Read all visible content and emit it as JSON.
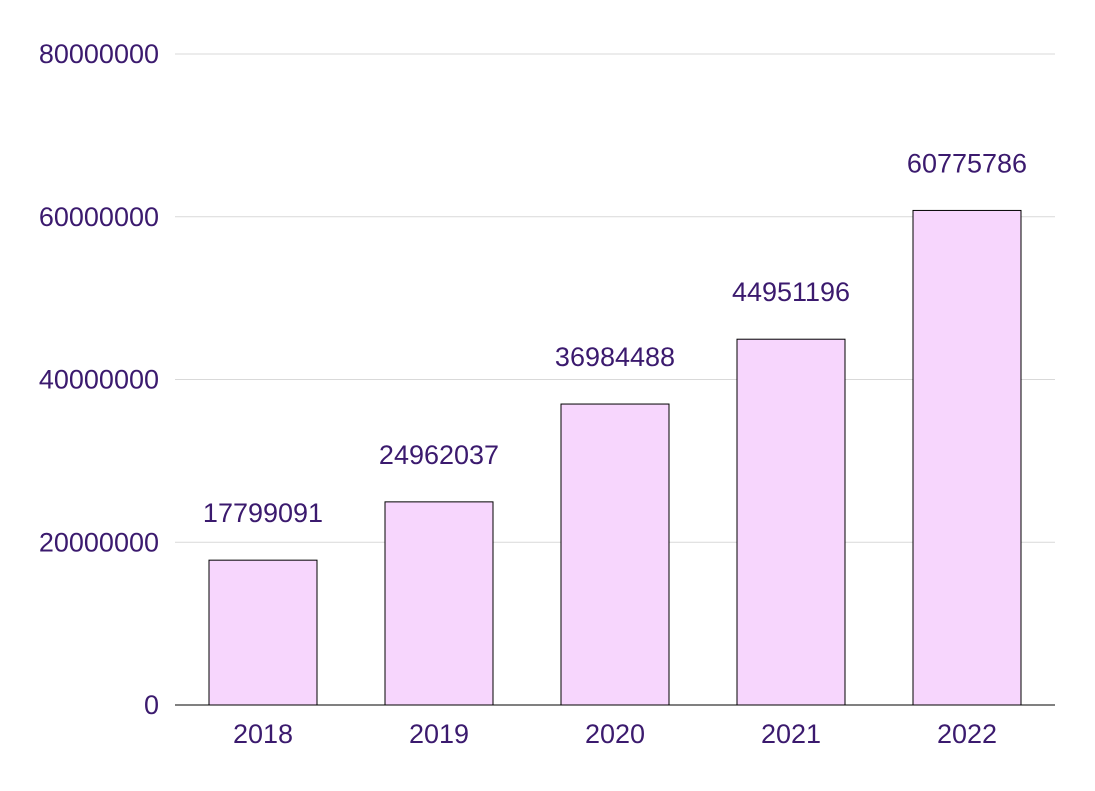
{
  "chart_data": {
    "type": "bar",
    "categories": [
      "2018",
      "2019",
      "2020",
      "2021",
      "2022"
    ],
    "values": [
      17799091,
      24962037,
      36984488,
      44951196,
      60775786
    ],
    "data_labels": [
      "17799091",
      "24962037",
      "36984488",
      "44951196",
      "60775786"
    ],
    "y_ticks": [
      "0",
      "20000000",
      "40000000",
      "60000000",
      "80000000"
    ],
    "ylim": [
      0,
      80000000
    ],
    "grid": true,
    "legend": "none",
    "colors": {
      "bar_fill": "#f7d6fd",
      "bar_stroke": "#000000",
      "text": "#3b1a6e",
      "grid": "#d9d9d9",
      "axis": "#000000"
    }
  }
}
